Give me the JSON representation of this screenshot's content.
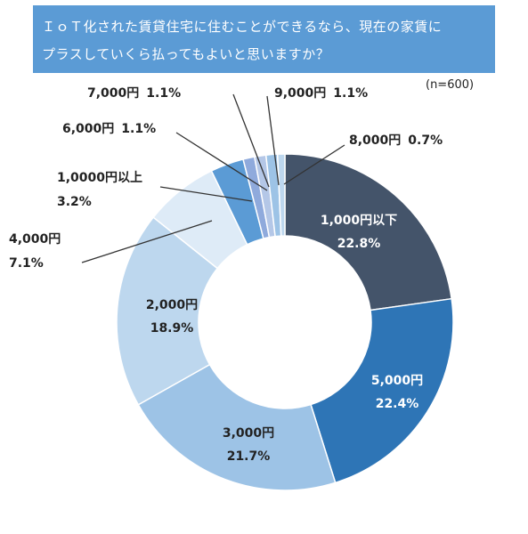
{
  "title_lines": [
    "ＩｏＴ化された賃貸住宅に住むことができるなら、現在の家賃に",
    "プラスしていくら払ってもよいと思いますか？"
  ],
  "sample_note": "(n=600)",
  "chart_data": {
    "type": "pie",
    "donut": true,
    "title": "ＩｏＴ化された賃貸住宅に住むことができるなら、現在の家賃にプラスしていくら払ってもよいと思いますか？",
    "n": 600,
    "unit": "%",
    "slices": [
      {
        "label": "1,000円以下",
        "value": 22.8,
        "value_text": "22.8%",
        "color": "#44546a"
      },
      {
        "label": "5,000円",
        "value": 22.4,
        "value_text": "22.4%",
        "color": "#2e75b6"
      },
      {
        "label": "3,000円",
        "value": 21.7,
        "value_text": "21.7%",
        "color": "#9dc3e6"
      },
      {
        "label": "2,000円",
        "value": 18.9,
        "value_text": "18.9%",
        "color": "#bdd7ee"
      },
      {
        "label": "4,000円",
        "value": 7.1,
        "value_text": "7.1%",
        "color": "#deebf7"
      },
      {
        "label": "1,0000円以上",
        "value": 3.2,
        "value_text": "3.2%",
        "color": "#5b9bd5"
      },
      {
        "label": "6,000円",
        "value": 1.1,
        "value_text": "1.1%",
        "color": "#8faadc"
      },
      {
        "label": "7,000円",
        "value": 1.1,
        "value_text": "1.1%",
        "color": "#b4c7e7"
      },
      {
        "label": "9,000円",
        "value": 1.1,
        "value_text": "1.1%",
        "color": "#9dc3e6"
      },
      {
        "label": "8,000円",
        "value": 0.7,
        "value_text": "0.7%",
        "color": "#bdd7ee"
      }
    ]
  }
}
